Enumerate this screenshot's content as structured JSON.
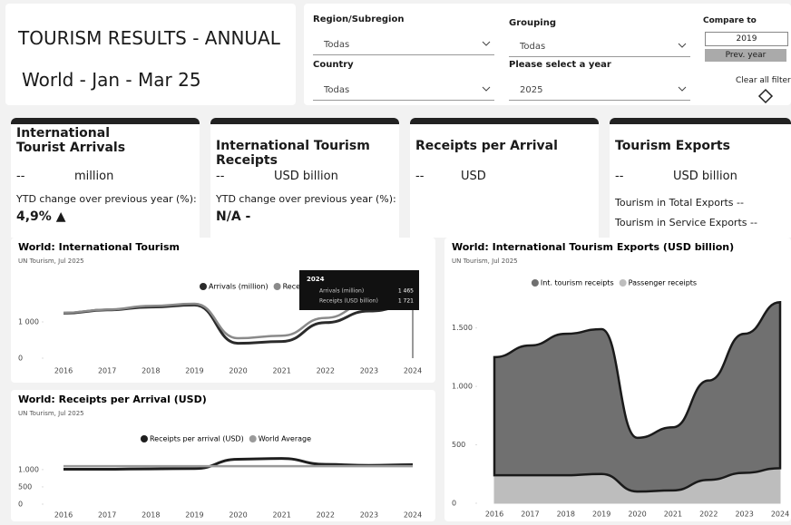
{
  "header": {
    "title": "TOURISM RESULTS - ANNUAL",
    "subtitle": "World - Jan - Mar 25"
  },
  "filters": [
    {
      "label": "Region/Subregion",
      "value": "Todas"
    },
    {
      "label": "Country",
      "value": "Todas"
    },
    {
      "label": "Grouping",
      "value": "Todas"
    },
    {
      "label": "Please select a year",
      "value": "2025"
    }
  ],
  "compare": {
    "label": "Compare to",
    "year": "2019",
    "button": "Prev. year",
    "clear": "Clear all filters"
  },
  "cards": [
    {
      "title": "International Tourist Arrivals",
      "value": "--",
      "unit": "million",
      "change_label": "YTD change over previous year (%):",
      "change": "4,9% ▲"
    },
    {
      "title": "International Tourism Receipts",
      "value": "--",
      "unit": "USD billion",
      "change_label": "YTD change over previous year (%):",
      "change": "N/A -"
    },
    {
      "title": "Receipts per Arrival",
      "value": "--",
      "unit": "USD"
    },
    {
      "title": "Tourism Exports",
      "value": "--",
      "unit": "USD billion",
      "lines": [
        "Tourism in Total Exports --",
        "Tourism in Service Exports --"
      ]
    }
  ],
  "charts": [
    {
      "type": "line",
      "title": "World: International Tourism",
      "subtitle": "UN Tourism, Jul 2025",
      "categories": [
        "2016",
        "2017",
        "2018",
        "2019",
        "2020",
        "2021",
        "2022",
        "2023",
        "2024"
      ],
      "series": [
        {
          "name": "Arrivals (million)",
          "color": "#2b2b2b",
          "values": [
            1240,
            1330,
            1410,
            1465,
            410,
            460,
            980,
            1300,
            1465
          ]
        },
        {
          "name": "Receipts (USD billion)",
          "color": "#8a8a8a",
          "values": [
            1250,
            1340,
            1440,
            1500,
            550,
            620,
            1110,
            1530,
            1721
          ]
        }
      ],
      "ylim": [
        0,
        2400
      ],
      "yticks": [
        0,
        {
          "value": 1000,
          "label": "1 000"
        }
      ],
      "tooltip": {
        "title": "2024",
        "rows": [
          [
            "Arrivals (million)",
            "1 465"
          ],
          [
            "Receipts (USD billion)",
            "1 721"
          ]
        ]
      }
    },
    {
      "type": "line",
      "title": "World: Receipts per Arrival (USD)",
      "subtitle": "UN Tourism, Jul 2025",
      "categories": [
        "2016",
        "2017",
        "2018",
        "2019",
        "2020",
        "2021",
        "2022",
        "2023",
        "2024"
      ],
      "series": [
        {
          "name": "Receipts per arrival (USD)",
          "color": "#1e1e1e",
          "values": [
            1010,
            1010,
            1020,
            1030,
            1300,
            1320,
            1150,
            1120,
            1140
          ]
        },
        {
          "name": "World Average",
          "color": "#9a9a9a",
          "values": [
            1100,
            1100,
            1100,
            1100,
            1100,
            1100,
            1100,
            1100,
            1100
          ]
        }
      ],
      "ylim": [
        0,
        1600
      ],
      "yticks": [
        0,
        500,
        {
          "value": 1000,
          "label": "1.000"
        }
      ]
    },
    {
      "type": "area",
      "title": "World: International Tourism Exports (USD billion)",
      "subtitle": "UN Tourism, Jul 2025",
      "categories": [
        "2016",
        "2017",
        "2018",
        "2019",
        "2020",
        "2021",
        "2022",
        "2023",
        "2024"
      ],
      "series": [
        {
          "name": "Int. tourism receipts",
          "color": "#707070",
          "values": [
            1010,
            1110,
            1210,
            1240,
            460,
            540,
            850,
            1190,
            1420
          ]
        },
        {
          "name": "Passenger receipts",
          "color": "#bdbdbd",
          "values": [
            240,
            240,
            240,
            250,
            100,
            110,
            200,
            260,
            300
          ]
        }
      ],
      "stack_order": "bottom_last",
      "ylim": [
        0,
        1800
      ],
      "yticks": [
        0,
        500,
        {
          "value": 1000,
          "label": "1.000"
        },
        {
          "value": 1500,
          "label": "1.500"
        }
      ]
    }
  ]
}
